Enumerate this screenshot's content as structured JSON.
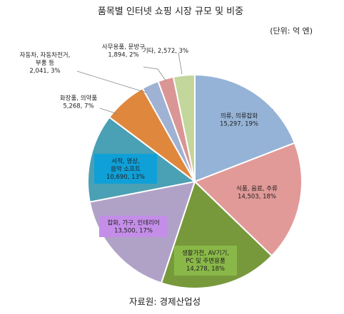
{
  "chart_data": {
    "type": "pie",
    "title": "품목별 인터넷 쇼핑 시장 규모 및 비중",
    "unit_note": "(단위: 억 엔)",
    "source": "자료원: 경제산업성",
    "slices": [
      {
        "label": "의류, 의류잡화",
        "value": 15297,
        "value_text": "15,297",
        "pct": 19,
        "color": "#95b3d7",
        "label_bg": "#95b3d7"
      },
      {
        "label": "식품, 음료, 주류",
        "value": 14503,
        "value_text": "14,503",
        "pct": 18,
        "color": "#e19a98",
        "label_bg": "#e19a98"
      },
      {
        "label": "생활가전, AV기기, PC 및 주변용품",
        "value": 14278,
        "value_text": "14,278",
        "pct": 18,
        "color": "#77993c",
        "label_bg": "#8ab848"
      },
      {
        "label": "잡화, 가구, 인테리어",
        "value": 13500,
        "value_text": "13,500",
        "pct": 17,
        "color": "#b0a2c7",
        "label_bg": "#c48ee8"
      },
      {
        "label": "서적, 영상, 음악 소프트",
        "value": 10690,
        "value_text": "10,690",
        "pct": 13,
        "color": "#4aa0b4",
        "label_bg": "#10a0d8"
      },
      {
        "label": "화장품, 의약품",
        "value": 5268,
        "value_text": "5,268",
        "pct": 7,
        "color": "#e0873e",
        "label_bg": null
      },
      {
        "label": "자동차, 자동차전거, 부품 등",
        "value": 2041,
        "value_text": "2,041",
        "pct": 3,
        "color": "#9fb2d3",
        "label_bg": null
      },
      {
        "label": "사무용품, 문방구",
        "value": 1894,
        "value_text": "1,894",
        "pct": 2,
        "color": "#d99694",
        "label_bg": null
      },
      {
        "label": "기타",
        "value": 2572,
        "value_text": "2,572",
        "pct": 3,
        "color": "#c3d69b",
        "label_bg": null
      }
    ]
  }
}
